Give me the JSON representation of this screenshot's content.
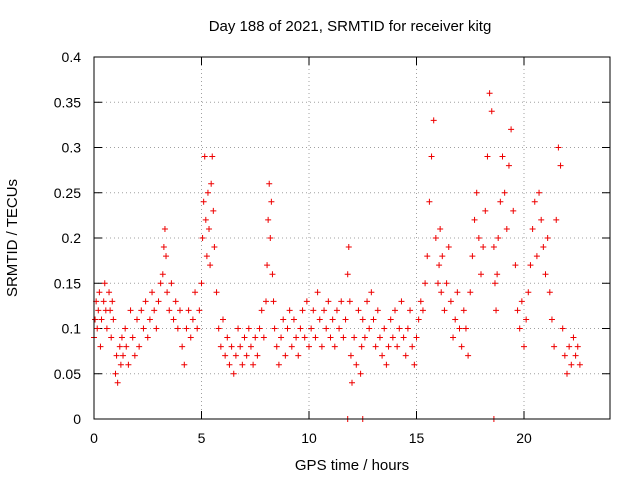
{
  "chart_data": {
    "type": "scatter",
    "title": "Day 188 of 2021, SRMTID for receiver kitg",
    "xlabel": "GPS time / hours",
    "ylabel": "SRMTID / TECUs",
    "xlim": [
      0,
      24
    ],
    "ylim": [
      0,
      0.4
    ],
    "xticks": [
      0,
      5,
      10,
      15,
      20
    ],
    "xtick_labels": [
      "0",
      "5",
      "10",
      "15",
      "20"
    ],
    "yticks": [
      0,
      0.05,
      0.1,
      0.15,
      0.2,
      0.25,
      0.3,
      0.35,
      0.4
    ],
    "ytick_labels": [
      "0",
      "0.05",
      "0.1",
      "0.15",
      "0.2",
      "0.25",
      "0.3",
      "0.35",
      "0.4"
    ],
    "grid": true,
    "marker": "plus",
    "series": [
      {
        "name": "SRMTID",
        "color": "#ee0000",
        "x": [
          0.0,
          0.05,
          0.1,
          0.15,
          0.2,
          0.25,
          0.3,
          0.35,
          0.45,
          0.5,
          0.55,
          0.6,
          0.7,
          0.75,
          0.8,
          0.85,
          0.9,
          1.0,
          1.05,
          1.1,
          1.2,
          1.25,
          1.3,
          1.35,
          1.45,
          1.5,
          1.6,
          1.7,
          1.8,
          1.9,
          2.0,
          2.1,
          2.2,
          2.3,
          2.4,
          2.5,
          2.6,
          2.7,
          2.8,
          2.9,
          3.0,
          3.1,
          3.2,
          3.25,
          3.3,
          3.35,
          3.4,
          3.5,
          3.6,
          3.7,
          3.8,
          3.9,
          4.0,
          4.1,
          4.2,
          4.3,
          4.4,
          4.5,
          4.6,
          4.7,
          4.8,
          4.9,
          5.0,
          5.05,
          5.1,
          5.15,
          5.2,
          5.25,
          5.3,
          5.35,
          5.4,
          5.45,
          5.5,
          5.55,
          5.6,
          5.7,
          5.8,
          5.9,
          6.0,
          6.1,
          6.2,
          6.3,
          6.4,
          6.5,
          6.6,
          6.7,
          6.8,
          6.9,
          7.0,
          7.1,
          7.2,
          7.3,
          7.4,
          7.5,
          7.6,
          7.7,
          7.8,
          7.9,
          8.0,
          8.05,
          8.1,
          8.15,
          8.2,
          8.25,
          8.3,
          8.35,
          8.4,
          8.5,
          8.6,
          8.7,
          8.8,
          8.9,
          9.0,
          9.1,
          9.2,
          9.3,
          9.4,
          9.5,
          9.6,
          9.7,
          9.8,
          9.9,
          10.0,
          10.1,
          10.2,
          10.3,
          10.4,
          10.5,
          10.6,
          10.7,
          10.8,
          10.9,
          11.0,
          11.1,
          11.2,
          11.3,
          11.4,
          11.5,
          11.6,
          11.7,
          11.8,
          11.85,
          11.9,
          11.95,
          12.0,
          12.1,
          12.2,
          12.3,
          12.4,
          12.45,
          12.5,
          12.6,
          12.7,
          12.8,
          12.9,
          13.0,
          13.1,
          13.2,
          13.3,
          13.4,
          13.5,
          13.6,
          13.7,
          13.8,
          13.9,
          14.0,
          14.1,
          14.2,
          14.3,
          14.4,
          14.5,
          14.6,
          14.7,
          14.8,
          14.9,
          15.0,
          15.1,
          15.2,
          15.3,
          15.4,
          15.5,
          15.6,
          15.7,
          15.8,
          15.9,
          16.0,
          16.05,
          16.1,
          16.15,
          16.2,
          16.3,
          16.4,
          16.5,
          16.6,
          16.7,
          16.8,
          16.9,
          17.0,
          17.1,
          17.2,
          17.3,
          17.4,
          17.5,
          17.6,
          17.7,
          17.8,
          17.9,
          18.0,
          18.1,
          18.2,
          18.3,
          18.4,
          18.5,
          18.6,
          18.65,
          18.7,
          18.75,
          18.8,
          18.9,
          19.0,
          19.1,
          19.2,
          19.3,
          19.4,
          19.5,
          19.6,
          19.7,
          19.8,
          19.9,
          20.0,
          20.1,
          20.2,
          20.3,
          20.4,
          20.5,
          20.6,
          20.7,
          20.8,
          20.9,
          21.0,
          21.1,
          21.2,
          21.3,
          21.4,
          21.5,
          21.6,
          21.7,
          21.8,
          21.9,
          22.0,
          22.1,
          22.2,
          22.3,
          22.4,
          22.5,
          22.6,
          11.8,
          12.5,
          18.6
        ],
        "y": [
          0.09,
          0.11,
          0.13,
          0.1,
          0.12,
          0.14,
          0.08,
          0.11,
          0.13,
          0.15,
          0.12,
          0.1,
          0.14,
          0.12,
          0.09,
          0.13,
          0.11,
          0.05,
          0.07,
          0.04,
          0.08,
          0.06,
          0.09,
          0.07,
          0.1,
          0.08,
          0.06,
          0.12,
          0.09,
          0.07,
          0.11,
          0.08,
          0.12,
          0.1,
          0.13,
          0.09,
          0.11,
          0.14,
          0.12,
          0.1,
          0.13,
          0.15,
          0.16,
          0.19,
          0.21,
          0.18,
          0.14,
          0.12,
          0.15,
          0.11,
          0.13,
          0.1,
          0.12,
          0.08,
          0.06,
          0.1,
          0.12,
          0.09,
          0.11,
          0.14,
          0.1,
          0.12,
          0.15,
          0.2,
          0.24,
          0.29,
          0.22,
          0.18,
          0.25,
          0.21,
          0.17,
          0.26,
          0.29,
          0.23,
          0.19,
          0.14,
          0.1,
          0.08,
          0.11,
          0.07,
          0.09,
          0.06,
          0.08,
          0.05,
          0.07,
          0.1,
          0.08,
          0.06,
          0.09,
          0.07,
          0.1,
          0.08,
          0.06,
          0.09,
          0.07,
          0.1,
          0.12,
          0.09,
          0.13,
          0.17,
          0.22,
          0.26,
          0.2,
          0.24,
          0.16,
          0.13,
          0.1,
          0.08,
          0.06,
          0.09,
          0.11,
          0.07,
          0.1,
          0.12,
          0.08,
          0.11,
          0.09,
          0.07,
          0.1,
          0.12,
          0.09,
          0.13,
          0.08,
          0.1,
          0.12,
          0.09,
          0.14,
          0.11,
          0.08,
          0.12,
          0.1,
          0.13,
          0.09,
          0.11,
          0.08,
          0.12,
          0.1,
          0.13,
          0.09,
          0.11,
          0.16,
          0.19,
          0.13,
          0.07,
          0.04,
          0.09,
          0.06,
          0.12,
          0.05,
          0.08,
          0.11,
          0.09,
          0.13,
          0.1,
          0.14,
          0.11,
          0.08,
          0.12,
          0.09,
          0.07,
          0.1,
          0.06,
          0.08,
          0.11,
          0.09,
          0.12,
          0.08,
          0.1,
          0.13,
          0.09,
          0.07,
          0.1,
          0.12,
          0.08,
          0.06,
          0.09,
          0.11,
          0.13,
          0.12,
          0.15,
          0.18,
          0.24,
          0.29,
          0.33,
          0.2,
          0.15,
          0.17,
          0.21,
          0.14,
          0.18,
          0.12,
          0.15,
          0.19,
          0.13,
          0.09,
          0.11,
          0.14,
          0.1,
          0.08,
          0.12,
          0.1,
          0.07,
          0.14,
          0.18,
          0.22,
          0.25,
          0.2,
          0.16,
          0.19,
          0.23,
          0.29,
          0.36,
          0.34,
          0.19,
          0.15,
          0.12,
          0.16,
          0.2,
          0.24,
          0.29,
          0.25,
          0.21,
          0.28,
          0.32,
          0.23,
          0.17,
          0.12,
          0.1,
          0.13,
          0.08,
          0.11,
          0.14,
          0.17,
          0.21,
          0.24,
          0.18,
          0.25,
          0.22,
          0.19,
          0.16,
          0.2,
          0.14,
          0.11,
          0.08,
          0.22,
          0.3,
          0.28,
          0.1,
          0.07,
          0.05,
          0.08,
          0.06,
          0.09,
          0.07,
          0.08,
          0.06,
          0.0,
          0.0,
          0.0
        ]
      }
    ]
  }
}
